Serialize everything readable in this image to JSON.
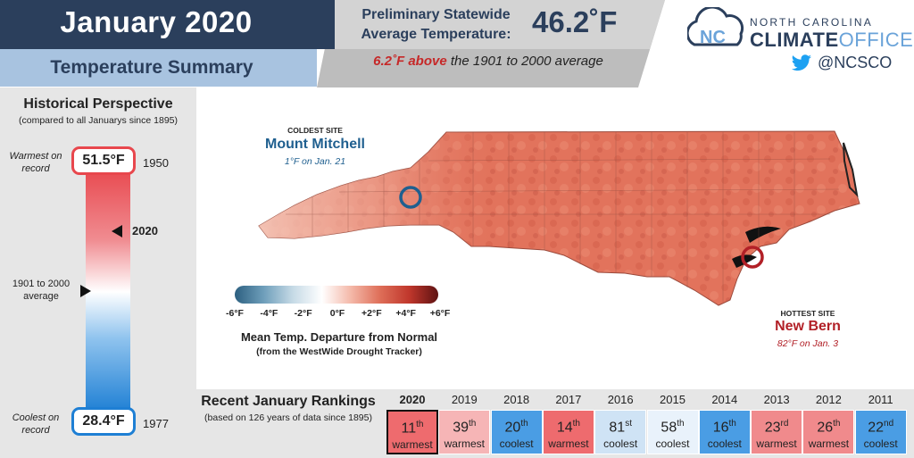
{
  "header": {
    "title": "January 2020",
    "subtitle": "Temperature Summary",
    "stat_label_line1": "Preliminary Statewide",
    "stat_label_line2": "Average Temperature:",
    "stat_value": "46.2˚F",
    "note_highlight": "6.2˚F above",
    "note_rest": " the 1901 to 2000 average"
  },
  "logo": {
    "line1": "NORTH CAROLINA",
    "line2_bold": "CLIMATE",
    "line2_light": "OFFICE",
    "twitter_handle": "@NCSCO",
    "icon": "cloud-nc-logo-icon",
    "twitter_icon": "twitter-bird-icon"
  },
  "historical": {
    "title": "Historical Perspective",
    "subtitle": "(compared to all Januarys since 1895)",
    "warmest_label": "Warmest on record",
    "warmest_value": "51.5°F",
    "warmest_year": "1950",
    "coolest_label": "Coolest on record",
    "coolest_value": "28.4°F",
    "coolest_year": "1977",
    "current_label": "2020",
    "average_label": "1901 to 2000 average",
    "colors": {
      "warm": "#e8474d",
      "cool": "#1e7fd4"
    }
  },
  "map": {
    "coldest": {
      "title": "COLDEST SITE",
      "name": "Mount Mitchell",
      "detail": "1°F on Jan. 21",
      "color": "#1f5f8f"
    },
    "hottest": {
      "title": "HOTTEST SITE",
      "name": "New Bern",
      "detail": "82°F on Jan. 3",
      "color": "#b22027"
    },
    "legend": {
      "ticks": [
        "-6°F",
        "-4°F",
        "-2°F",
        "0°F",
        "+2°F",
        "+4°F",
        "+6°F"
      ],
      "title": "Mean Temp. Departure from Normal",
      "source": "(from the WestWide Drought Tracker)"
    }
  },
  "rankings": {
    "title": "Recent January Rankings",
    "subtitle": "(based on 126 years of data since 1895)",
    "items": [
      {
        "year": "2020",
        "rank": "11",
        "suffix": "th",
        "label": "warmest",
        "color": "#ee6b6e"
      },
      {
        "year": "2019",
        "rank": "39",
        "suffix": "th",
        "label": "warmest",
        "color": "#f6b5b6"
      },
      {
        "year": "2018",
        "rank": "20",
        "suffix": "th",
        "label": "coolest",
        "color": "#4a9de4"
      },
      {
        "year": "2017",
        "rank": "14",
        "suffix": "th",
        "label": "warmest",
        "color": "#ee6b6e"
      },
      {
        "year": "2016",
        "rank": "81",
        "suffix": "st",
        "label": "coolest",
        "color": "#cfe3f5"
      },
      {
        "year": "2015",
        "rank": "58",
        "suffix": "th",
        "label": "coolest",
        "color": "#e9f2fb"
      },
      {
        "year": "2014",
        "rank": "16",
        "suffix": "th",
        "label": "coolest",
        "color": "#4a9de4"
      },
      {
        "year": "2013",
        "rank": "23",
        "suffix": "rd",
        "label": "warmest",
        "color": "#f08a8c"
      },
      {
        "year": "2012",
        "rank": "26",
        "suffix": "th",
        "label": "warmest",
        "color": "#f08a8c"
      },
      {
        "year": "2011",
        "rank": "22",
        "suffix": "nd",
        "label": "coolest",
        "color": "#4a9de4"
      }
    ]
  }
}
